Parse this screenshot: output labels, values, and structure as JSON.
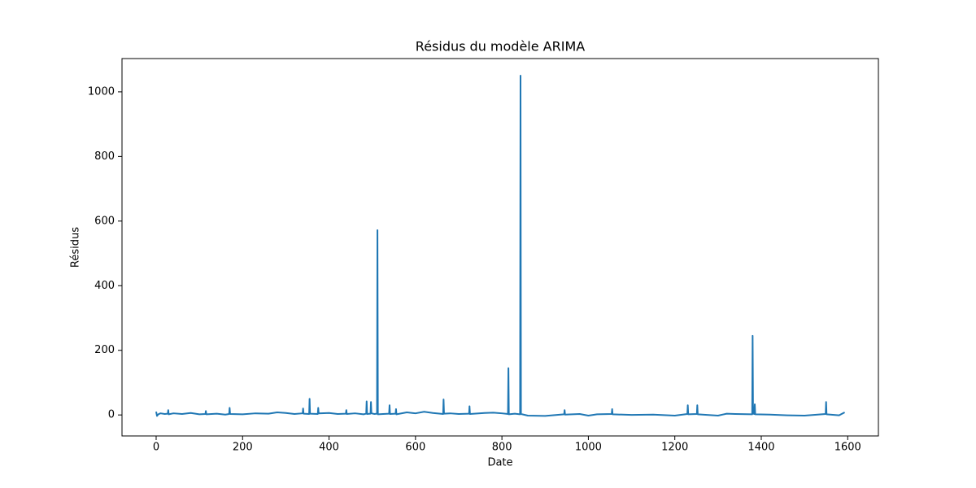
{
  "chart_data": {
    "type": "line",
    "title": "Résidus du modèle ARIMA",
    "x_label": "Date",
    "y_label": "Résidus",
    "xlim": [
      -79,
      1671
    ],
    "ylim": [
      -65,
      1103
    ],
    "xticks": [
      0,
      200,
      400,
      600,
      800,
      1000,
      1200,
      1400,
      1600
    ],
    "yticks": [
      0,
      200,
      400,
      600,
      800,
      1000
    ],
    "grid": false,
    "series": [
      {
        "name": "Résidus",
        "color": "#1f77b4",
        "x": [
          0,
          2,
          5,
          10,
          20,
          27,
          28,
          29,
          40,
          60,
          80,
          100,
          114,
          115,
          116,
          140,
          160,
          169,
          170,
          171,
          200,
          230,
          260,
          280,
          300,
          320,
          339,
          340,
          341,
          354,
          355,
          356,
          374,
          375,
          376,
          400,
          420,
          439,
          440,
          441,
          460,
          480,
          486,
          487,
          488,
          496,
          497,
          498,
          505,
          511,
          512,
          513,
          525,
          539,
          540,
          541,
          554,
          555,
          556,
          580,
          600,
          620,
          640,
          664,
          665,
          666,
          680,
          700,
          724,
          725,
          726,
          760,
          780,
          800,
          814,
          815,
          816,
          830,
          842,
          843,
          844,
          860,
          900,
          944,
          945,
          946,
          980,
          1000,
          1020,
          1054,
          1055,
          1056,
          1100,
          1150,
          1200,
          1229,
          1230,
          1231,
          1251,
          1252,
          1253,
          1300,
          1320,
          1340,
          1379,
          1380,
          1381,
          1384,
          1385,
          1386,
          1420,
          1460,
          1500,
          1549,
          1550,
          1551,
          1580,
          1593
        ],
        "values": [
          10,
          -3,
          2,
          5,
          3,
          4,
          15,
          2,
          5,
          3,
          6,
          2,
          3,
          12,
          2,
          4,
          1,
          3,
          22,
          3,
          2,
          5,
          4,
          8,
          6,
          3,
          5,
          20,
          4,
          3,
          50,
          4,
          3,
          22,
          5,
          6,
          3,
          4,
          15,
          3,
          5,
          2,
          4,
          42,
          3,
          4,
          40,
          5,
          3,
          4,
          572,
          2,
          3,
          4,
          30,
          3,
          4,
          18,
          2,
          8,
          5,
          10,
          6,
          3,
          48,
          4,
          5,
          3,
          4,
          27,
          3,
          6,
          7,
          5,
          3,
          145,
          2,
          4,
          2,
          1050,
          3,
          -2,
          -3,
          2,
          15,
          1,
          3,
          -2,
          2,
          3,
          18,
          2,
          0,
          1,
          -2,
          3,
          30,
          2,
          3,
          30,
          2,
          -2,
          4,
          3,
          2,
          245,
          4,
          3,
          33,
          2,
          1,
          -1,
          -2,
          3,
          40,
          2,
          -1,
          8
        ]
      }
    ]
  }
}
